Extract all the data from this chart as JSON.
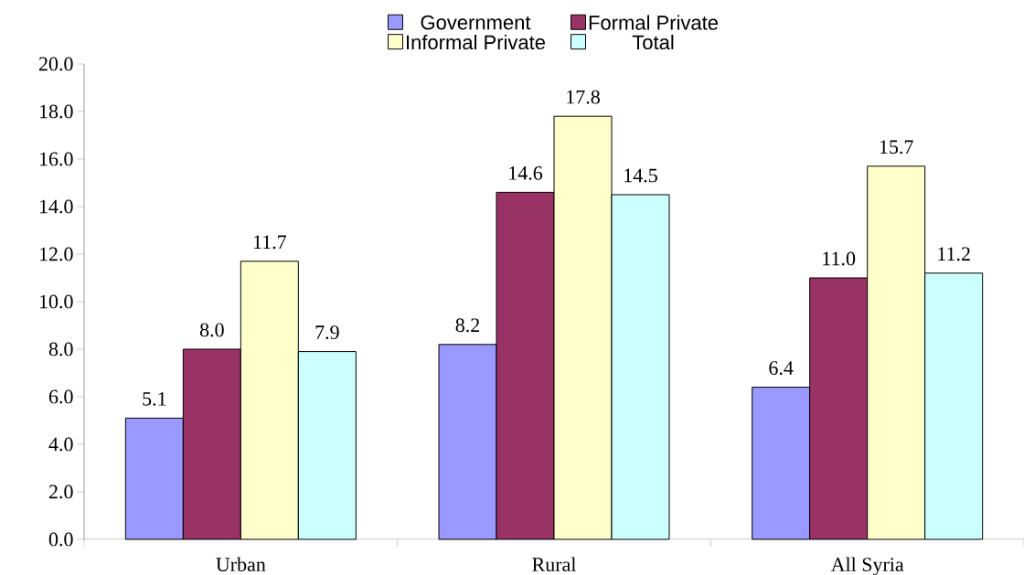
{
  "chart_data": {
    "type": "bar",
    "categories": [
      "Urban",
      "Rural",
      "All Syria"
    ],
    "series": [
      {
        "name": "Government",
        "color": "#9999ff",
        "values": [
          5.1,
          8.2,
          6.4
        ],
        "value_labels": [
          "5.1",
          "8.2",
          "6.4"
        ]
      },
      {
        "name": "Formal Private",
        "color": "#993366",
        "values": [
          8.0,
          14.6,
          11.0
        ],
        "value_labels": [
          "8.0",
          "14.6",
          "11.0"
        ]
      },
      {
        "name": "Informal Private",
        "color": "#ffffcc",
        "values": [
          11.7,
          17.8,
          15.7
        ],
        "value_labels": [
          "11.7",
          "17.8",
          "15.7"
        ]
      },
      {
        "name": "Total",
        "color": "#ccffff",
        "values": [
          7.9,
          14.5,
          11.2
        ],
        "value_labels": [
          "7.9",
          "14.5",
          "11.2"
        ]
      }
    ],
    "ylim": [
      0,
      20
    ],
    "yticks": [
      {
        "value": 0,
        "label": "0.0"
      },
      {
        "value": 2,
        "label": "2.0"
      },
      {
        "value": 4,
        "label": "4.0"
      },
      {
        "value": 6,
        "label": "6.0"
      },
      {
        "value": 8,
        "label": "8.0"
      },
      {
        "value": 10,
        "label": "10.0"
      },
      {
        "value": 12,
        "label": "12.0"
      },
      {
        "value": 14,
        "label": "14.0"
      },
      {
        "value": 16,
        "label": "16.0"
      },
      {
        "value": 18,
        "label": "18.0"
      },
      {
        "value": 20,
        "label": "20.0"
      }
    ],
    "legend": "top"
  }
}
